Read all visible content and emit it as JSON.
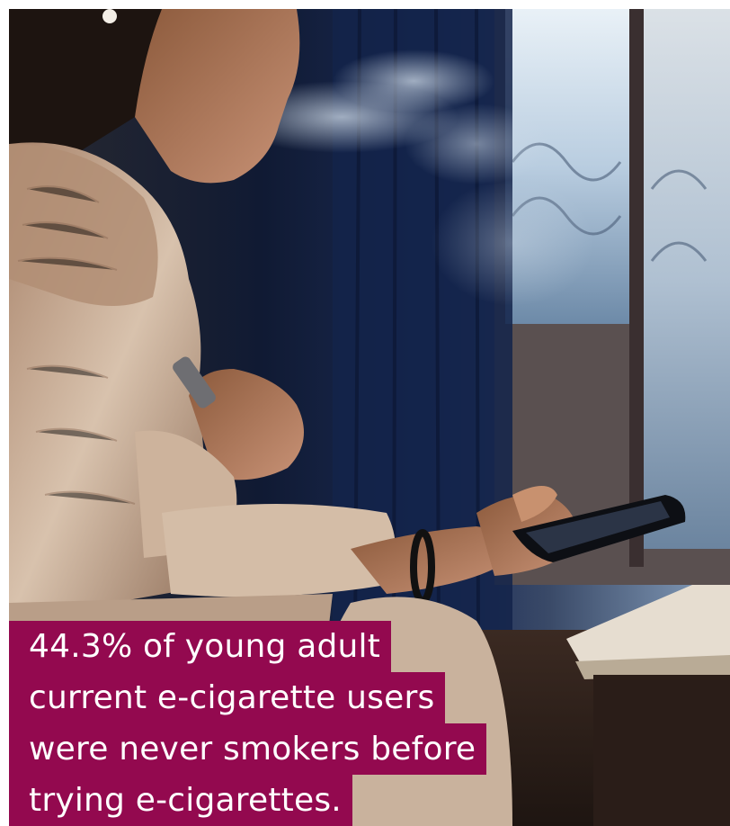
{
  "caption": {
    "lines": [
      "44.3% of young adult",
      "current e-cigarette users",
      "were never smokers before",
      "trying e-cigarettes."
    ],
    "background_color": "#93094f",
    "text_color": "#ffffff"
  },
  "photo": {
    "subject": "woman-vaping-with-phone-icon"
  }
}
